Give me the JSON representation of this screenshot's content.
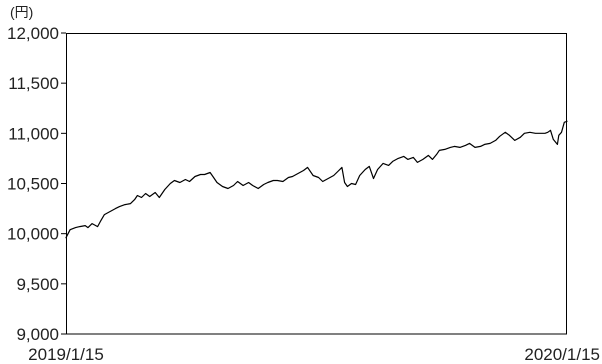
{
  "chart_data": {
    "type": "line",
    "ylabel": "(円)",
    "ylim": [
      9000,
      12000
    ],
    "xlim": [
      "2019-01-15",
      "2020-01-15"
    ],
    "grid": false,
    "legend": "none",
    "yticks": [
      {
        "value": 12000,
        "label": "12,000"
      },
      {
        "value": 11500,
        "label": "11,500"
      },
      {
        "value": 11000,
        "label": "11,000"
      },
      {
        "value": 10500,
        "label": "10,500"
      },
      {
        "value": 10000,
        "label": "10,000"
      },
      {
        "value": 9500,
        "label": "9,500"
      },
      {
        "value": 9000,
        "label": "9,000"
      }
    ],
    "xticks": [
      {
        "value": "2019-01-15",
        "label": "2019/1/15"
      },
      {
        "value": "2020-01-15",
        "label": "2020/1/15"
      }
    ],
    "x": [
      "2019-01-15",
      "2019-01-18",
      "2019-01-22",
      "2019-01-25",
      "2019-01-29",
      "2019-01-31",
      "2019-02-03",
      "2019-02-07",
      "2019-02-09",
      "2019-02-12",
      "2019-02-16",
      "2019-02-20",
      "2019-02-23",
      "2019-02-27",
      "2019-03-03",
      "2019-03-06",
      "2019-03-08",
      "2019-03-11",
      "2019-03-14",
      "2019-03-17",
      "2019-03-21",
      "2019-03-24",
      "2019-03-28",
      "2019-04-01",
      "2019-04-04",
      "2019-04-08",
      "2019-04-12",
      "2019-04-15",
      "2019-04-19",
      "2019-04-23",
      "2019-04-26",
      "2019-04-30",
      "2019-05-02",
      "2019-05-05",
      "2019-05-09",
      "2019-05-13",
      "2019-05-17",
      "2019-05-20",
      "2019-05-24",
      "2019-05-28",
      "2019-05-31",
      "2019-06-04",
      "2019-06-08",
      "2019-06-11",
      "2019-06-15",
      "2019-06-18",
      "2019-06-22",
      "2019-06-26",
      "2019-06-29",
      "2019-07-03",
      "2019-07-07",
      "2019-07-10",
      "2019-07-14",
      "2019-07-18",
      "2019-07-21",
      "2019-07-25",
      "2019-07-29",
      "2019-08-01",
      "2019-08-04",
      "2019-08-06",
      "2019-08-08",
      "2019-08-11",
      "2019-08-14",
      "2019-08-17",
      "2019-08-21",
      "2019-08-24",
      "2019-08-27",
      "2019-08-30",
      "2019-09-03",
      "2019-09-07",
      "2019-09-10",
      "2019-09-14",
      "2019-09-18",
      "2019-09-21",
      "2019-09-25",
      "2019-09-28",
      "2019-10-02",
      "2019-10-06",
      "2019-10-09",
      "2019-10-12",
      "2019-10-14",
      "2019-10-18",
      "2019-10-22",
      "2019-10-25",
      "2019-10-29",
      "2019-11-02",
      "2019-11-05",
      "2019-11-09",
      "2019-11-13",
      "2019-11-16",
      "2019-11-20",
      "2019-11-24",
      "2019-11-27",
      "2019-12-01",
      "2019-12-04",
      "2019-12-08",
      "2019-12-12",
      "2019-12-15",
      "2019-12-19",
      "2019-12-23",
      "2019-12-26",
      "2019-12-30",
      "2020-01-01",
      "2020-01-03",
      "2020-01-05",
      "2020-01-08",
      "2020-01-09",
      "2020-01-11",
      "2020-01-13",
      "2020-01-15"
    ],
    "series": [
      {
        "color": "#000000",
        "values": [
          9960,
          10040,
          10060,
          10070,
          10080,
          10060,
          10100,
          10070,
          10120,
          10190,
          10220,
          10250,
          10270,
          10290,
          10300,
          10340,
          10380,
          10360,
          10400,
          10370,
          10410,
          10360,
          10440,
          10500,
          10530,
          10510,
          10540,
          10520,
          10570,
          10590,
          10590,
          10610,
          10570,
          10510,
          10470,
          10450,
          10480,
          10520,
          10480,
          10510,
          10480,
          10450,
          10490,
          10510,
          10530,
          10530,
          10520,
          10560,
          10570,
          10600,
          10630,
          10660,
          10580,
          10560,
          10520,
          10550,
          10580,
          10620,
          10660,
          10510,
          10470,
          10500,
          10490,
          10580,
          10640,
          10670,
          10550,
          10640,
          10700,
          10680,
          10720,
          10750,
          10770,
          10740,
          10760,
          10710,
          10740,
          10780,
          10740,
          10790,
          10830,
          10840,
          10860,
          10870,
          10860,
          10880,
          10900,
          10860,
          10870,
          10890,
          10900,
          10930,
          10970,
          11010,
          10980,
          10930,
          10960,
          11000,
          11010,
          11000,
          11000,
          11000,
          11010,
          11030,
          10940,
          10890,
          10980,
          11010,
          11110,
          11120
        ]
      }
    ]
  }
}
